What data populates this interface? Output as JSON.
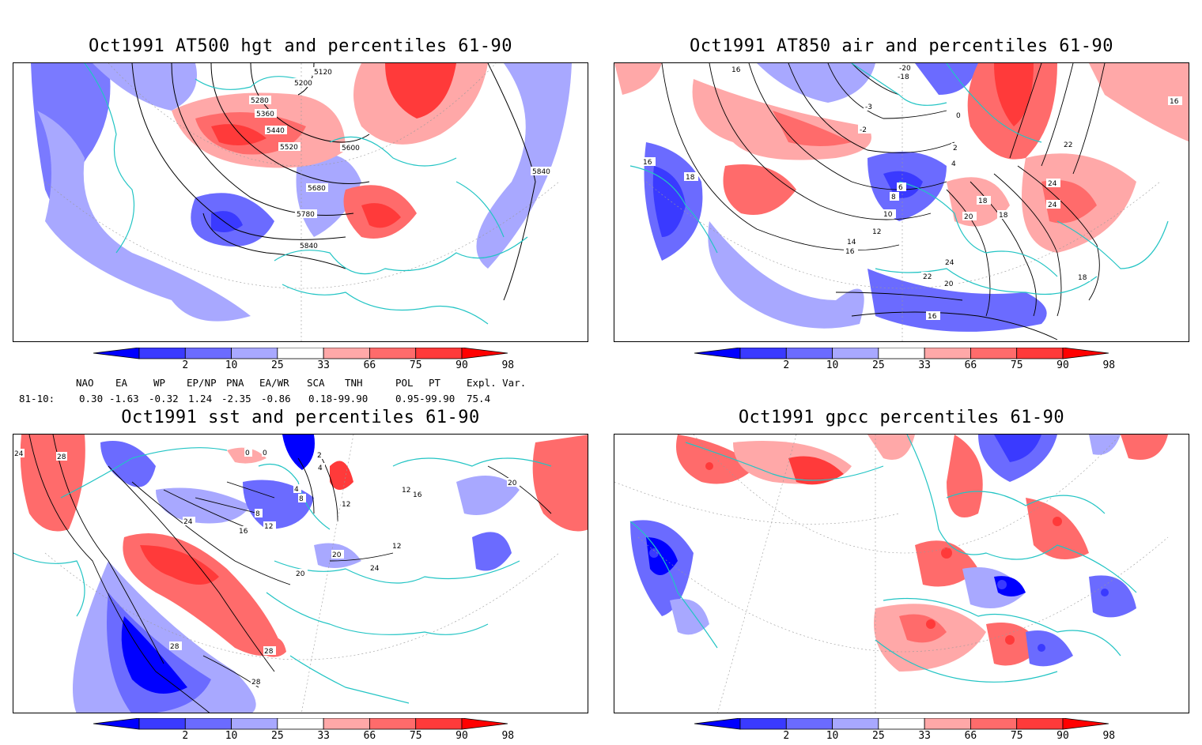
{
  "panels": [
    {
      "id": "hgt500",
      "title": "Oct1991 AT500 hgt and percentiles 61-90",
      "contour_labels": [
        "5120",
        "5200",
        "5280",
        "5360",
        "5440",
        "5520",
        "5600",
        "5680",
        "5780",
        "5840",
        "5840"
      ]
    },
    {
      "id": "air850",
      "title": "Oct1991 AT850 air and percentiles 61-90",
      "contour_labels": [
        "16",
        "-20",
        "-18",
        "-3",
        "-2",
        "0",
        "2",
        "4",
        "6",
        "8",
        "10",
        "12",
        "14",
        "16",
        "18",
        "18",
        "20",
        "20",
        "22",
        "22",
        "24",
        "24",
        "24",
        "16",
        "16",
        "18",
        "16",
        "18"
      ]
    },
    {
      "id": "sst",
      "title": "Oct1991 sst and percentiles 61-90",
      "contour_labels": [
        "24",
        "28",
        "0",
        "0",
        "2",
        "4",
        "4",
        "8",
        "8",
        "12",
        "16",
        "12",
        "12",
        "16",
        "20",
        "20",
        "24",
        "24",
        "28",
        "28",
        "28",
        "20",
        "12"
      ]
    },
    {
      "id": "gpcc",
      "title": "Oct1991 gpcc percentiles 61-90",
      "contour_labels": []
    }
  ],
  "colorbar": {
    "labels": [
      "2",
      "10",
      "25",
      "33",
      "66",
      "75",
      "90",
      "98"
    ],
    "colors": [
      "#0000ff",
      "#3a3aff",
      "#6b6bff",
      "#a8a8ff",
      "#ffffff",
      "#ffa8a8",
      "#ff6b6b",
      "#ff3a3a",
      "#ff0000"
    ]
  },
  "teleconnections": {
    "headers": [
      "NAO",
      "EA",
      "WP",
      "EP/NP",
      "PNA",
      "EA/WR",
      "SCA",
      "TNH",
      "POL",
      "PT",
      "Expl. Var."
    ],
    "row_label": "81-10:",
    "values": [
      "0.30",
      "-1.63",
      "-0.32",
      "1.24",
      "-2.35",
      "-0.86",
      "0.18-99.90",
      "",
      "0.95-99.90",
      "",
      "75.4"
    ]
  },
  "colors": {
    "coast": "#22c4c4",
    "pos": "#ff3a3a",
    "neg": "#3a3aff"
  }
}
